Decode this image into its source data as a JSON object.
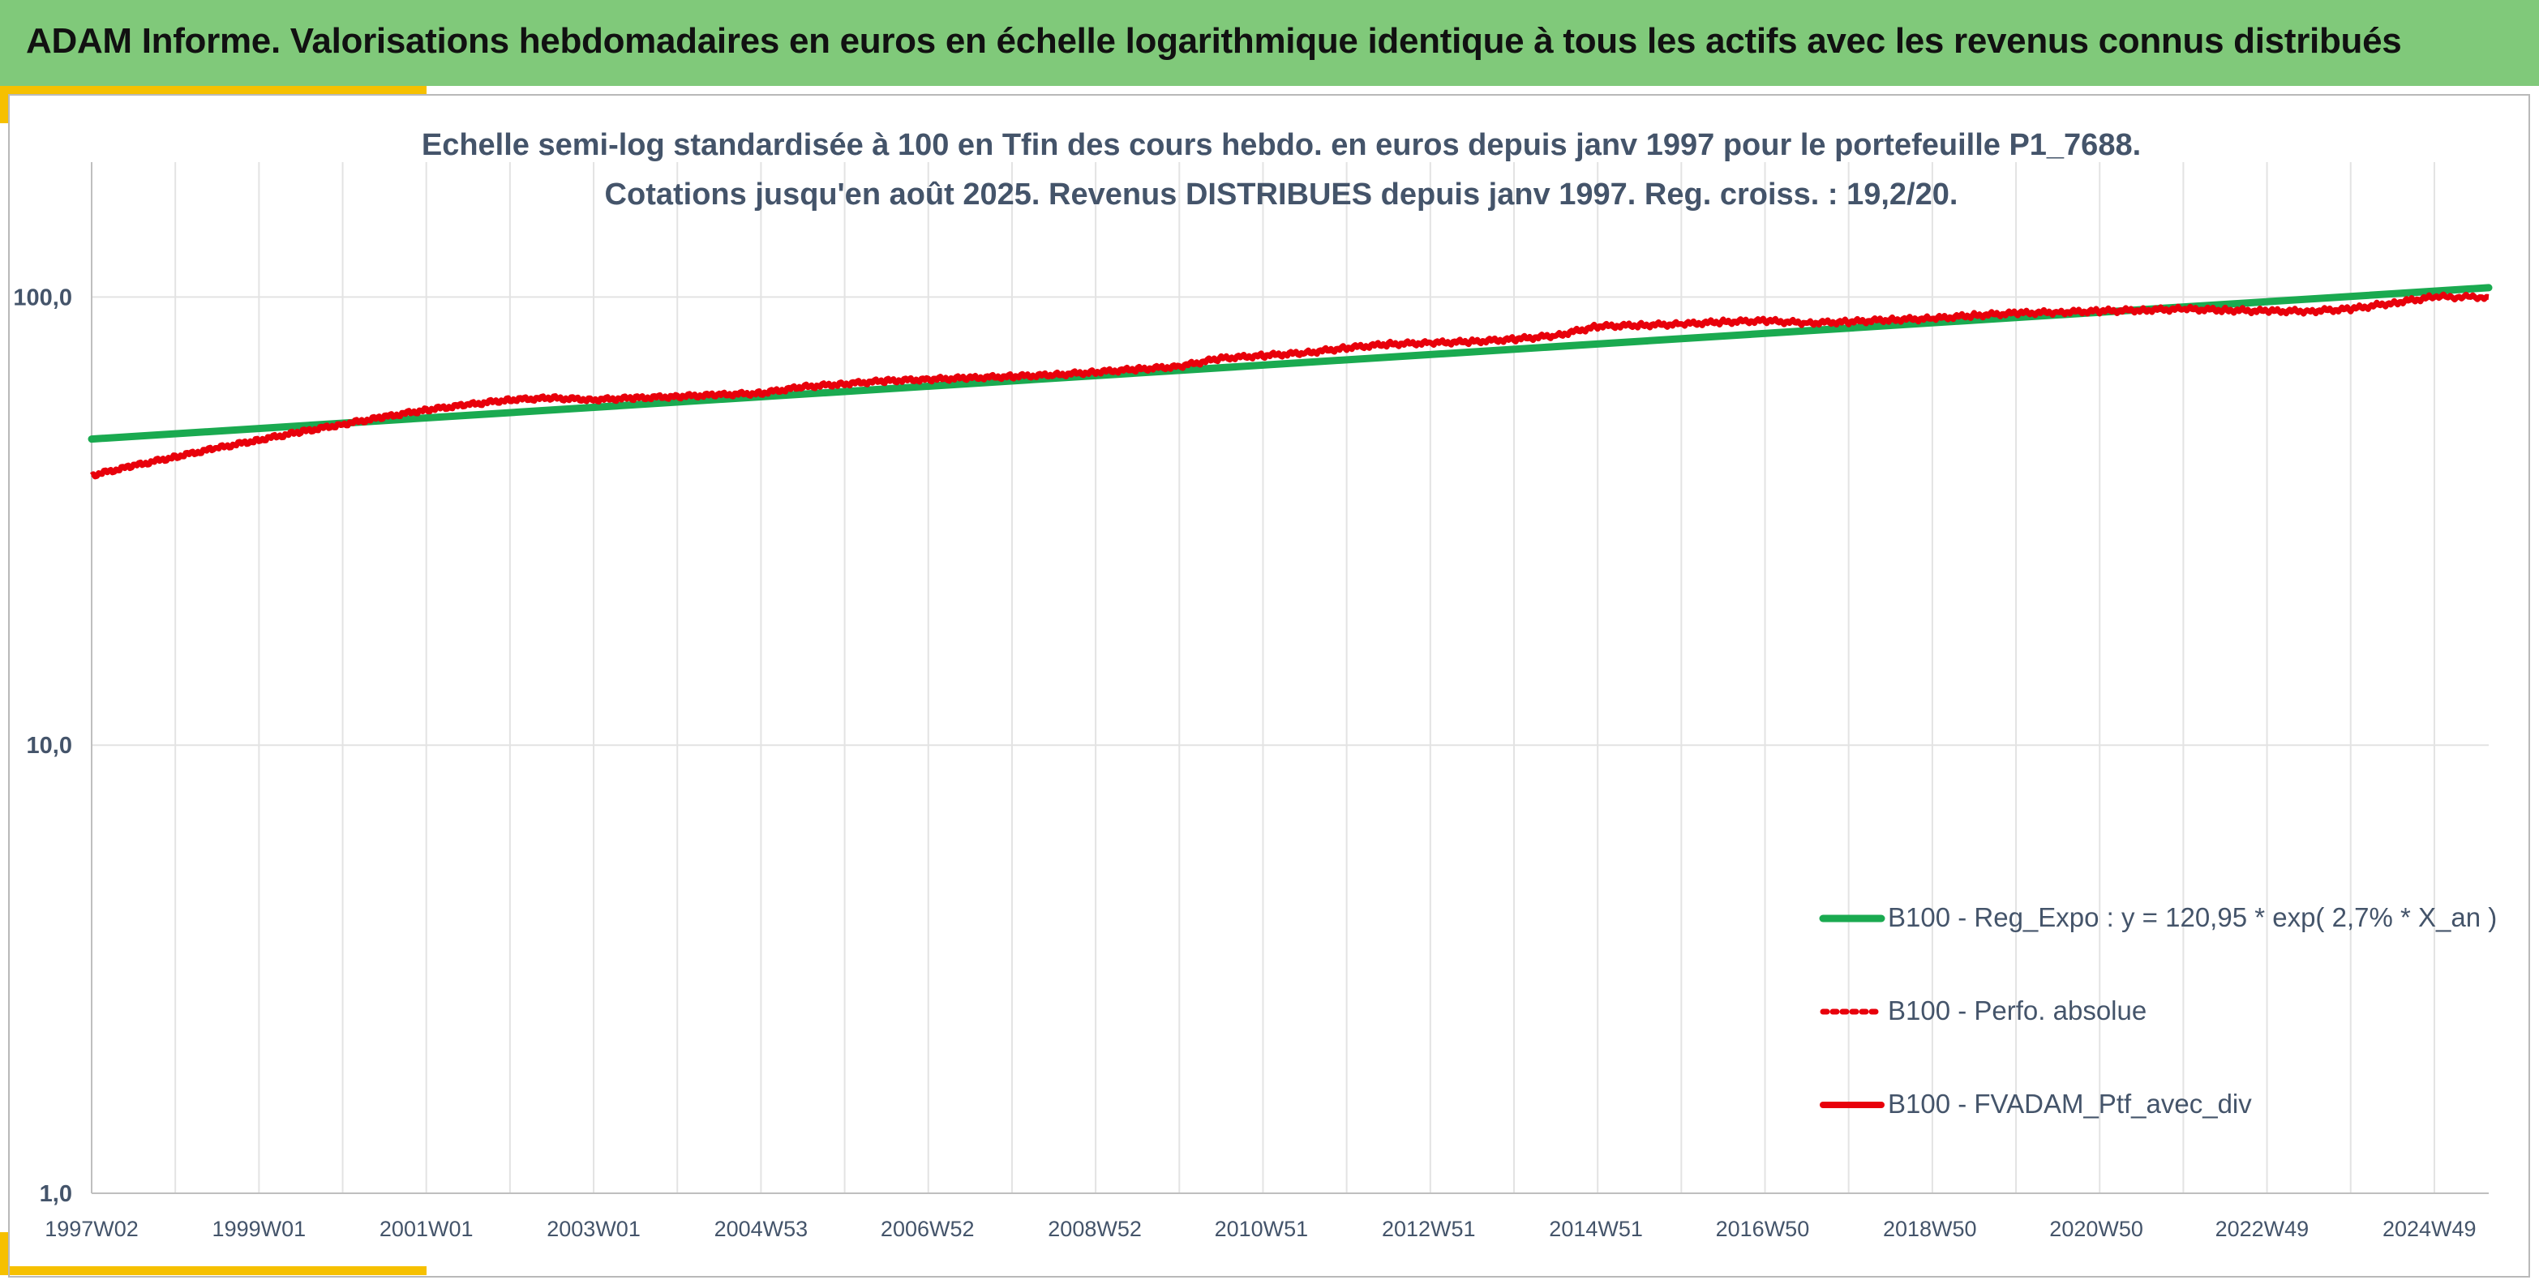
{
  "header": {
    "title": "ADAM Informe. Valorisations hebdomadaires en euros en échelle logarithmique identique à tous les actifs avec les revenus connus distribués"
  },
  "colors": {
    "header_bg": "#80c97a",
    "accent": "#f6c000",
    "regression": "#1aaa50",
    "portfolio": "#e8000b",
    "text": "#44546a",
    "grid": "#e3e3e3"
  },
  "chart_data": {
    "type": "line",
    "subtitle_lines": [
      "Echelle semi-log standardisée à 100 en Tfin des cours hebdo. en euros depuis janv 1997 pour le portefeuille P1_7688.",
      "Cotations jusqu'en août 2025. Revenus DISTRIBUES depuis janv 1997. Reg. croiss. : 19,2/20."
    ],
    "y_scale": "log",
    "ylim": [
      1,
      200
    ],
    "y_ticks": [
      1,
      10,
      100
    ],
    "y_tick_labels": [
      "1,0",
      "10,0",
      "100,0"
    ],
    "x_range": [
      1997.0,
      2025.65
    ],
    "x_ticks": [
      1997.0,
      1999.0,
      2001.0,
      2003.0,
      2005.0,
      2006.99,
      2008.99,
      2010.98,
      2012.98,
      2014.98,
      2016.97,
      2018.97,
      2020.96,
      2022.94,
      2024.94
    ],
    "x_tick_labels": [
      "1997W02",
      "1999W01",
      "2001W01",
      "2003W01",
      "2004W53",
      "2006W52",
      "2008W52",
      "2010W51",
      "2012W51",
      "2014W51",
      "2016W50",
      "2018W50",
      "2020W50",
      "2022W49",
      "2024W49"
    ],
    "grid": "vertical and horizontal",
    "legend_position": "bottom-right",
    "legend": [
      {
        "label": "B100 - Reg_Expo : y = 120,95 * exp( 2,7% *  X_an )",
        "style": "solid-green"
      },
      {
        "label": "B100 - Perfo. absolue",
        "style": "dotted-red"
      },
      {
        "label": "B100 - FVADAM_Ptf_avec_div",
        "style": "solid-red"
      }
    ],
    "series": [
      {
        "name": "B100 - Reg_Expo : y = 120,95 * exp( 2,7% *  X_an )",
        "x": [
          1997.0,
          2025.65
        ],
        "values": [
          48.2,
          104.9
        ]
      },
      {
        "name": "B100 - FVADAM_Ptf_avec_div",
        "x": [
          1997.0,
          1997.5,
          1998.0,
          1998.5,
          1999.0,
          1999.5,
          2000.0,
          2000.5,
          2001.0,
          2001.5,
          2002.0,
          2002.5,
          2003.0,
          2003.5,
          2004.0,
          2004.5,
          2005.0,
          2005.5,
          2006.0,
          2006.5,
          2007.0,
          2007.5,
          2008.0,
          2008.5,
          2009.0,
          2009.5,
          2010.0,
          2010.5,
          2011.0,
          2011.5,
          2012.0,
          2012.5,
          2013.0,
          2013.5,
          2014.0,
          2014.5,
          2015.0,
          2015.5,
          2016.0,
          2016.5,
          2017.0,
          2017.5,
          2018.0,
          2018.5,
          2019.0,
          2019.5,
          2020.0,
          2020.5,
          2021.0,
          2021.5,
          2022.0,
          2022.5,
          2023.0,
          2023.5,
          2024.0,
          2024.5,
          2025.0,
          2025.65
        ],
        "values": [
          40,
          42,
          44,
          46,
          48,
          50,
          52,
          54,
          56,
          57.5,
          59,
          59.5,
          59,
          59.5,
          60,
          60.5,
          61,
          63,
          64,
          65,
          65.5,
          66,
          66.5,
          67,
          68,
          69,
          70,
          73,
          74,
          75,
          77,
          78.5,
          79,
          79.5,
          80.5,
          82,
          86,
          86.5,
          87,
          88,
          88.5,
          87.5,
          88,
          89,
          89.5,
          91,
          92,
          92.5,
          93,
          93.5,
          94,
          93.5,
          93,
          93,
          94,
          97,
          100,
          100
        ]
      }
    ]
  }
}
